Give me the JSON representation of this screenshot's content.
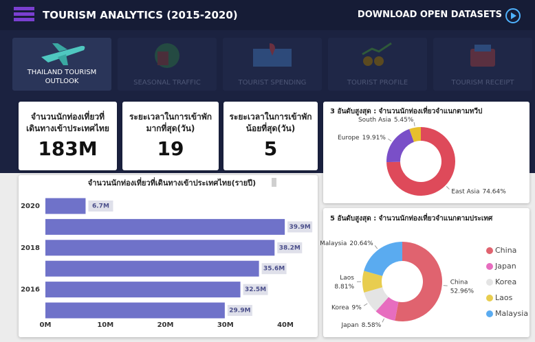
{
  "header": {
    "title": "TOURISM ANALYTICS (2015-2020)",
    "download": "DOWNLOAD OPEN DATASETS"
  },
  "nav": [
    "THAILAND TOURISM OUTLOOK",
    "SEASONAL TRAFFIC",
    "TOURIST SPENDING",
    "TOURIST PROFILE",
    "TOURISM RECEIPT"
  ],
  "kpis": [
    {
      "label": "จำนวนนักท่องเที่ยวที่เดินทางเข้าประเทศไทย",
      "value": "183M"
    },
    {
      "label": "ระยะเวลาในการเข้าพักมากที่สุด(วัน)",
      "value": "19"
    },
    {
      "label": "ระยะเวลาในการเข้าพักน้อยที่สุด(วัน)",
      "value": "5"
    }
  ],
  "chart_data": [
    {
      "type": "hbar",
      "title": "จำนวนนักท่องเที่ยวที่เดินทางเข้าประเทศไทย(รายปี)",
      "categories": [
        "2020",
        null,
        "2018",
        null,
        "2016",
        null
      ],
      "values": [
        6.7,
        39.9,
        38.2,
        35.6,
        32.5,
        29.9
      ],
      "value_labels": [
        "6.7M",
        "39.9M",
        "38.2M",
        "35.6M",
        "32.5M",
        "29.9M"
      ],
      "color": "#6f72c9",
      "xlim": [
        0,
        40
      ],
      "xticks": [
        {
          "value": 0,
          "label": "0M"
        },
        {
          "value": 10,
          "label": "10M"
        },
        {
          "value": 20,
          "label": "20M"
        },
        {
          "value": 30,
          "label": "30M"
        },
        {
          "value": 40,
          "label": "40M"
        }
      ]
    },
    {
      "type": "donut",
      "title": "3 อันดับสูงสุด : จำนวนนักท่องเที่ยวจำแนกตามทวีป",
      "categories": [
        "East Asia",
        "Europe",
        "South Asia"
      ],
      "values": [
        74.64,
        19.91,
        5.45
      ],
      "value_labels": [
        "74.64%",
        "19.91%",
        "5.45%"
      ],
      "colors": [
        "#de4a5a",
        "#7a4fc8",
        "#e7bf2c"
      ]
    },
    {
      "type": "donut",
      "title": "5 อันดับสูงสุด : จำนวนนักท่องเที่ยวจำแนกตามประเทศ",
      "categories": [
        "China",
        "Japan",
        "Korea",
        "Laos",
        "Malaysia"
      ],
      "values": [
        52.96,
        8.58,
        9,
        8.81,
        20.64
      ],
      "value_labels": [
        "52.96%",
        "8.58%",
        "9%",
        "8.81%",
        "20.64%"
      ],
      "colors": [
        "#e0636f",
        "#e76dbf",
        "#e4e4e4",
        "#e8cd4f",
        "#5aabf0"
      ],
      "legend": "right"
    }
  ]
}
